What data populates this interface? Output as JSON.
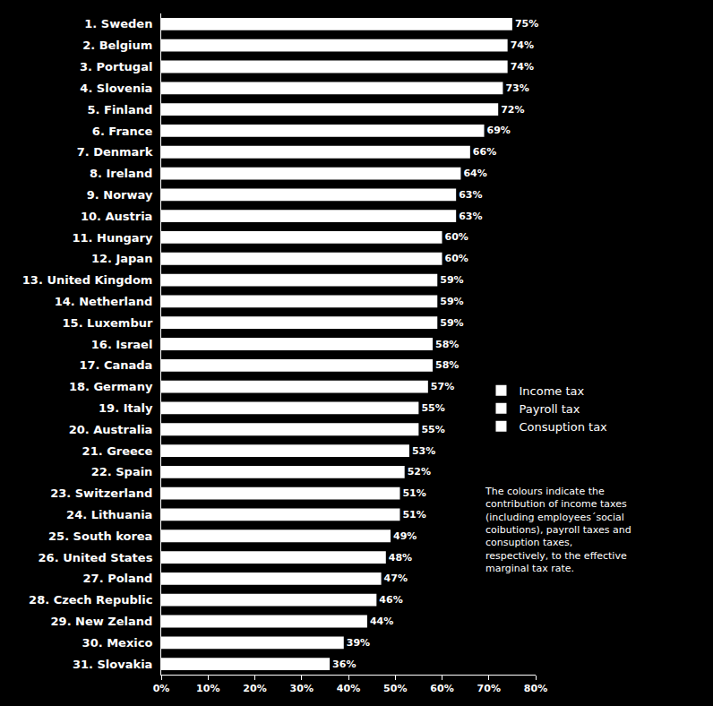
{
  "chart_data": {
    "type": "bar",
    "orientation": "horizontal",
    "categories": [
      "1. Sweden",
      "2. Belgium",
      "3. Portugal",
      "4. Slovenia",
      "5. Finland",
      "6. France",
      "7. Denmark",
      "8. Ireland",
      "9. Norway",
      "10. Austria",
      "11. Hungary",
      "12. Japan",
      "13. United Kingdom",
      "14. Netherland",
      "15. Luxembur",
      "16. Israel",
      "17. Canada",
      "18. Germany",
      "19. Italy",
      "20. Australia",
      "21. Greece",
      "22. Spain",
      "23. Switzerland",
      "24. Lithuania",
      "25. South korea",
      "26. United States",
      "27. Poland",
      "28. Czech Republic",
      "29. New Zeland",
      "30. Mexico",
      "31. Slovakia"
    ],
    "series": [
      {
        "name": "Income tax",
        "color": "#ffffff",
        "values": [
          75,
          74,
          74,
          73,
          72,
          69,
          66,
          64,
          63,
          63,
          60,
          60,
          59,
          59,
          59,
          58,
          58,
          57,
          55,
          55,
          53,
          52,
          51,
          51,
          49,
          48,
          47,
          46,
          44,
          39,
          36
        ],
        "value_labels": [
          "75%",
          "74%",
          "74%",
          "73%",
          "72%",
          "69%",
          "66%",
          "64%",
          "63%",
          "63%",
          "60%",
          "60%",
          "59%",
          "59%",
          "59%",
          "58%",
          "58%",
          "57%",
          "55%",
          "55%",
          "53%",
          "52%",
          "51%",
          "51%",
          "49%",
          "48%",
          "47%",
          "46%",
          "44%",
          "39%",
          "36%"
        ]
      },
      {
        "name": "Payroll tax",
        "color": "#ffffff",
        "values": [
          null,
          null,
          null,
          null,
          null,
          null,
          null,
          null,
          null,
          null,
          null,
          null,
          null,
          null,
          null,
          null,
          null,
          null,
          null,
          null,
          null,
          null,
          null,
          null,
          null,
          null,
          null,
          null,
          null,
          null,
          null
        ]
      },
      {
        "name": "Consuption tax",
        "color": "#ffffff",
        "values": [
          null,
          null,
          null,
          null,
          null,
          null,
          null,
          null,
          null,
          null,
          null,
          null,
          null,
          null,
          null,
          null,
          null,
          null,
          null,
          null,
          null,
          null,
          null,
          null,
          null,
          null,
          null,
          null,
          null,
          null,
          null
        ]
      }
    ],
    "xlim": [
      0,
      80
    ],
    "xticks": [
      {
        "value": 0,
        "label": "0%"
      },
      {
        "value": 10,
        "label": "10%"
      },
      {
        "value": 20,
        "label": "20%"
      },
      {
        "value": 30,
        "label": "30%"
      },
      {
        "value": 40,
        "label": "40%"
      },
      {
        "value": 50,
        "label": "50%"
      },
      {
        "value": 60,
        "label": "60%"
      },
      {
        "value": 70,
        "label": "70%"
      },
      {
        "value": 80,
        "label": "80%"
      }
    ],
    "grid": false,
    "legend": "right",
    "data_labels": true,
    "annotation": [
      "The colours indicate the",
      "contribution of income taxes",
      "(including employees´social",
      "coibutions), payroll taxes and",
      "consuption taxes,",
      "respectively, to the effective",
      "marginal tax rate."
    ]
  }
}
